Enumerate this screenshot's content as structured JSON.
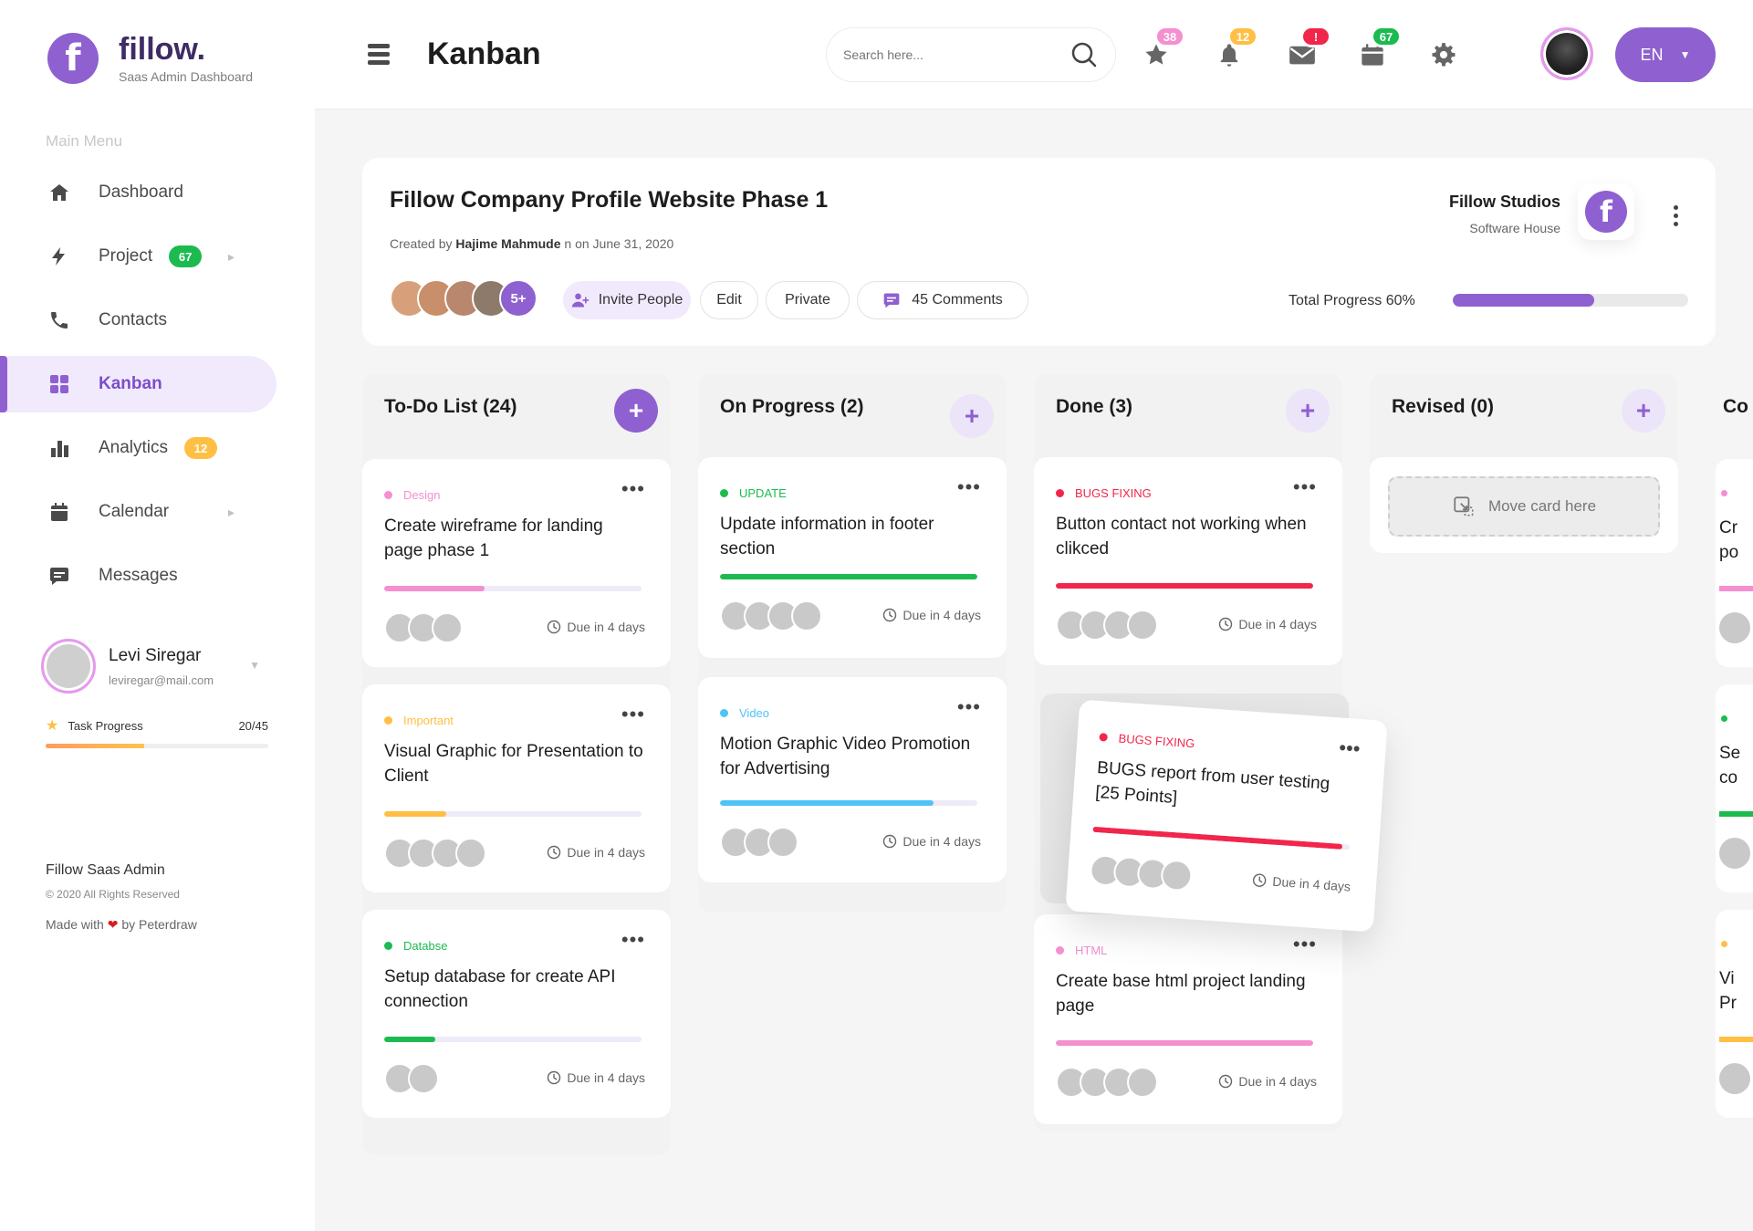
{
  "sidebar": {
    "logo": {
      "letter": "f",
      "name": "fillow.",
      "subtitle": "Saas Admin Dashboard"
    },
    "menu_title": "Main Menu",
    "items": [
      {
        "label": "Dashboard",
        "icon": "home-icon",
        "badge": null
      },
      {
        "label": "Project",
        "icon": "bolt-icon",
        "badge": "67",
        "badge_color": "#1cbb4f",
        "has_chevron": true
      },
      {
        "label": "Contacts",
        "icon": "phone-icon",
        "badge": null
      },
      {
        "label": "Kanban",
        "icon": "grid-icon",
        "badge": null,
        "active": true
      },
      {
        "label": "Analytics",
        "icon": "bar-chart-icon",
        "badge": "12",
        "badge_color": "#ffbf44"
      },
      {
        "label": "Calendar",
        "icon": "calendar-icon",
        "badge": null,
        "has_chevron": true
      },
      {
        "label": "Messages",
        "icon": "message-icon",
        "badge": null
      }
    ],
    "profile": {
      "name": "Levi Siregar",
      "email": "leviregar@mail.com"
    },
    "task_progress": {
      "label": "Task Progress",
      "value": "20/45",
      "fraction": 0.444
    },
    "footer": {
      "line1": "Fillow Saas Admin",
      "line2": "© 2020 All Rights Reserved",
      "made_prefix": "Made with",
      "made_suffix": "by Peterdraw"
    }
  },
  "header": {
    "title": "Kanban",
    "search_placeholder": "Search here...",
    "icons": [
      {
        "name": "star-icon",
        "badge": "38",
        "color": "#f48fd0"
      },
      {
        "name": "bell-icon",
        "badge": "12",
        "color": "#ffbf44"
      },
      {
        "name": "mail-icon",
        "badge": "!",
        "color": "#f2254a"
      },
      {
        "name": "calendar-icon",
        "badge": "67",
        "color": "#1cbb4f"
      },
      {
        "name": "gear-icon",
        "badge": null
      }
    ],
    "language": "EN"
  },
  "project": {
    "title": "Fillow Company Profile Website Phase 1",
    "created_prefix": "Created by",
    "created_by": "Hajime Mahmude",
    "created_suffix": "n on June 31, 2020",
    "members_more": "5+",
    "invite_label": "Invite People",
    "edit_label": "Edit",
    "private_label": "Private",
    "comments_label": "45 Comments",
    "studio_name": "Fillow Studios",
    "studio_type": "Software House",
    "studio_letter": "f",
    "total_progress_label": "Total Progress 60%",
    "total_progress": 0.6
  },
  "columns": [
    {
      "title": "To-Do List (24)",
      "cards": [
        {
          "tag": "Design",
          "tag_color": "#f48fd0",
          "title": "Create wireframe for landing page phase 1",
          "progress": 0.39,
          "bar_color": "#f48fd0",
          "members": 3,
          "due": "Due in 4 days"
        },
        {
          "tag": "Important",
          "tag_color": "#ffbf44",
          "title": "Visual Graphic for Presentation to Client",
          "progress": 0.24,
          "bar_color": "#ffbf44",
          "members": 4,
          "due": "Due in 4 days"
        },
        {
          "tag": "Databse",
          "tag_color": "#1cbb4f",
          "title": "Setup database for create API connection",
          "progress": 0.2,
          "bar_color": "#1cbb4f",
          "members": 2,
          "due": "Due in 4 days"
        }
      ]
    },
    {
      "title": "On Progress (2)",
      "cards": [
        {
          "tag": "UPDATE",
          "tag_color": "#1cbb4f",
          "title": "Update information in footer section",
          "progress": 1.0,
          "bar_color": "#1cbb4f",
          "members": 4,
          "due": "Due in 4 days"
        },
        {
          "tag": "Video",
          "tag_color": "#4fc3f7",
          "title": "Motion Graphic Video Promotion for Advertising",
          "progress": 0.83,
          "bar_color": "#4fc3f7",
          "members": 3,
          "due": "Due in 4 days"
        }
      ]
    },
    {
      "title": "Done (3)",
      "cards": [
        {
          "tag": "BUGS FIXING",
          "tag_color": "#f2254a",
          "title": "Button contact not working when clikced",
          "progress": 1.0,
          "bar_color": "#f2254a",
          "members": 4,
          "due": "Due in 4 days"
        },
        {
          "tag": "HTML",
          "tag_color": "#f48fd0",
          "title": "Create base html project landing page",
          "progress": 1.0,
          "bar_color": "#f48fd0",
          "members": 4,
          "due": "Due in 4 days"
        }
      ]
    },
    {
      "title": "Revised (0)",
      "placeholder": "Move card here"
    }
  ],
  "dragging_card": {
    "tag": "BUGS FIXING",
    "tag_color": "#f2254a",
    "title": "BUGS report from user testing [25 Points]",
    "progress": 0.97,
    "bar_color": "#f2254a",
    "members": 4,
    "due": "Due in 4 days"
  },
  "partial_column": {
    "title": "Co",
    "card_texts": [
      [
        "Cr",
        "po"
      ],
      [
        "Se",
        "co"
      ],
      [
        "Vi",
        "Pr"
      ]
    ]
  }
}
